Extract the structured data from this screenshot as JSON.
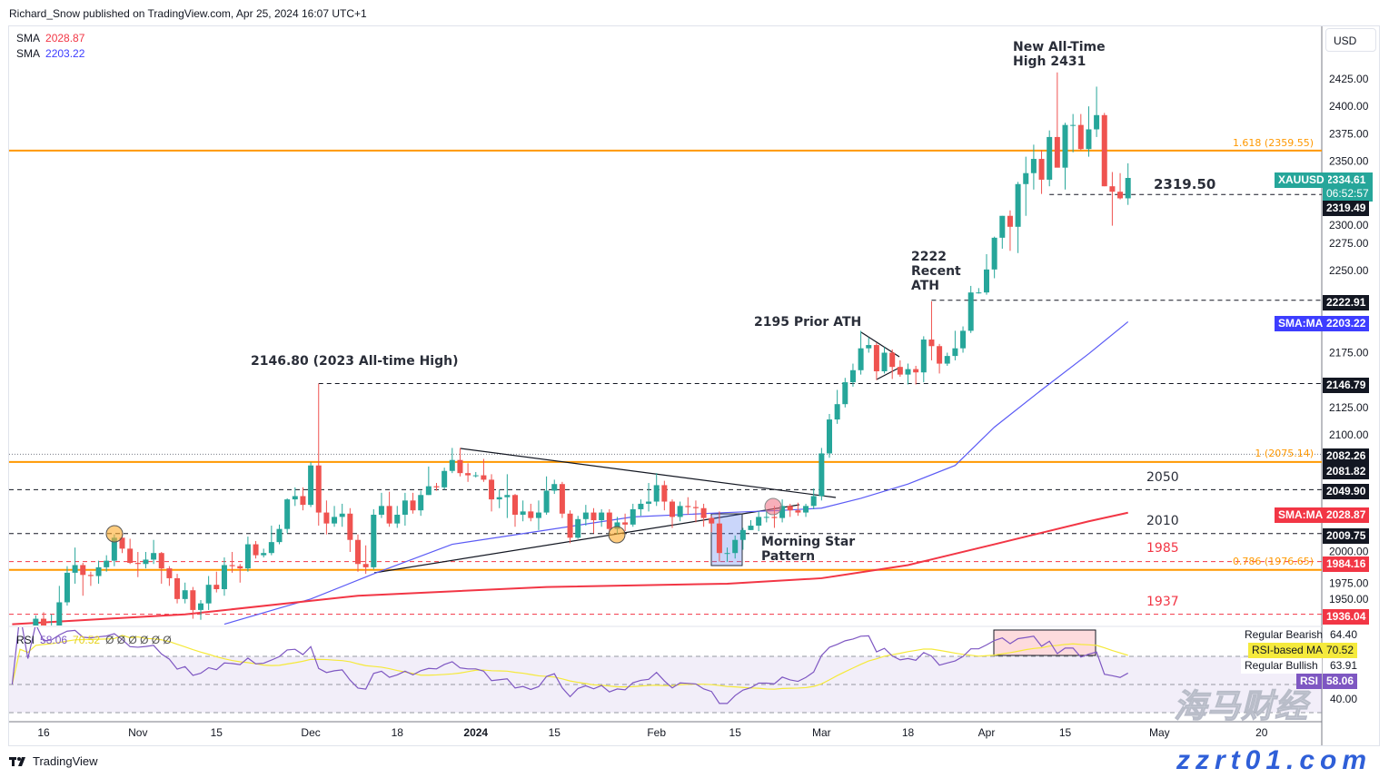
{
  "header": {
    "publisher": "Richard_Snow published on TradingView.com, Apr 25, 2024 16:07 UTC+1"
  },
  "legend": {
    "sma1_label": "SMA",
    "sma1_value": "2028.87",
    "sma2_label": "SMA",
    "sma2_value": "2203.22"
  },
  "rsi_legend": {
    "label": "RSI",
    "value": "58.06",
    "ma_value": "70.52",
    "extras": "Ø Ø Ø Ø Ø Ø"
  },
  "currency": "USD",
  "colors": {
    "up": "#26a69a",
    "down": "#ef5350",
    "sma50": "#5b5bf5",
    "sma200": "#f23645",
    "fib": "#ff9800",
    "rsi": "#7e57c2",
    "rsi_ma": "#f5e93a"
  },
  "watermark": {
    "cn": "海马财经",
    "url": "zzrt01.com"
  },
  "branding": "TradingView",
  "chart_data": {
    "type": "candlestick",
    "symbol": "XAUUSD",
    "ylim": [
      1925,
      2445
    ],
    "y_ticks": [
      "2425.00",
      "2400.00",
      "2375.00",
      "2350.00",
      "2300.00",
      "2275.00",
      "2250.00",
      "2175.00",
      "2125.00",
      "2100.00",
      "2000.00",
      "1975.00",
      "1950.00"
    ],
    "x_ticks": [
      [
        "16",
        "Oct 16"
      ],
      [
        "Nov",
        "Nov 1"
      ],
      [
        "15",
        "Nov 15"
      ],
      [
        "Dec",
        "Dec 1"
      ],
      [
        "18",
        "Dec 18"
      ],
      [
        "2024",
        "Jan 1"
      ],
      [
        "15",
        "Jan 15"
      ],
      [
        "Feb",
        "Feb 1"
      ],
      [
        "15",
        "Feb 15"
      ],
      [
        "Mar",
        "Mar 1"
      ],
      [
        "18",
        "Mar 18"
      ],
      [
        "Apr",
        "Apr 1"
      ],
      [
        "15",
        "Apr 15"
      ],
      [
        "May",
        "May 1"
      ],
      [
        "20",
        "May 20"
      ]
    ],
    "bars": [
      [
        "Oct 10",
        1857,
        1866,
        1855,
        1861
      ],
      [
        "Oct 11",
        1861,
        1876,
        1859,
        1874
      ],
      [
        "Oct 12",
        1874,
        1885,
        1866,
        1868
      ],
      [
        "Oct 13",
        1868,
        1935,
        1867,
        1932
      ],
      [
        "Oct 16",
        1932,
        1938,
        1909,
        1920
      ],
      [
        "Oct 17",
        1920,
        1936,
        1915,
        1923
      ],
      [
        "Oct 18",
        1923,
        1962,
        1920,
        1947
      ],
      [
        "Oct 19",
        1947,
        1980,
        1944,
        1974
      ],
      [
        "Oct 20",
        1974,
        1997,
        1964,
        1981
      ],
      [
        "Oct 23",
        1981,
        1983,
        1953,
        1972
      ],
      [
        "Oct 24",
        1972,
        1975,
        1962,
        1971
      ],
      [
        "Oct 25",
        1971,
        1985,
        1964,
        1979
      ],
      [
        "Oct 26",
        1979,
        1990,
        1975,
        1985
      ],
      [
        "Oct 27",
        1985,
        2009,
        1980,
        2006
      ],
      [
        "Oct 30",
        2006,
        2010,
        1992,
        1996
      ],
      [
        "Oct 31",
        1996,
        2005,
        1982,
        1983
      ],
      [
        "Nov 1",
        1983,
        1993,
        1970,
        1982
      ],
      [
        "Nov 2",
        1982,
        1993,
        1978,
        1986
      ],
      [
        "Nov 3",
        1986,
        2004,
        1982,
        1992
      ],
      [
        "Nov 6",
        1992,
        1993,
        1964,
        1978
      ],
      [
        "Nov 7",
        1978,
        1980,
        1962,
        1969
      ],
      [
        "Nov 8",
        1969,
        1973,
        1946,
        1950
      ],
      [
        "Nov 9",
        1950,
        1965,
        1946,
        1958
      ],
      [
        "Nov 10",
        1958,
        1961,
        1932,
        1940
      ],
      [
        "Nov 13",
        1940,
        1949,
        1931,
        1946
      ],
      [
        "Nov 14",
        1946,
        1971,
        1940,
        1963
      ],
      [
        "Nov 15",
        1963,
        1975,
        1956,
        1959
      ],
      [
        "Nov 16",
        1959,
        1988,
        1953,
        1981
      ],
      [
        "Nov 17",
        1981,
        1993,
        1974,
        1980
      ],
      [
        "Nov 20",
        1980,
        1982,
        1965,
        1978
      ],
      [
        "Nov 21",
        1978,
        2007,
        1975,
        2000
      ],
      [
        "Nov 22",
        2000,
        2003,
        1987,
        1990
      ],
      [
        "Nov 23",
        1990,
        1996,
        1988,
        1992
      ],
      [
        "Nov 24",
        1992,
        2017,
        1990,
        2002
      ],
      [
        "Nov 27",
        2002,
        2018,
        2000,
        2014
      ],
      [
        "Nov 28",
        2014,
        2042,
        2010,
        2041
      ],
      [
        "Nov 29",
        2041,
        2052,
        2035,
        2044
      ],
      [
        "Nov 30",
        2044,
        2052,
        2031,
        2036
      ],
      [
        "Dec 1",
        2036,
        2075,
        2034,
        2072
      ],
      [
        "Dec 4",
        2072,
        2146.8,
        2017,
        2029
      ],
      [
        "Dec 5",
        2029,
        2040,
        2009,
        2019
      ],
      [
        "Dec 6",
        2019,
        2035,
        2016,
        2025
      ],
      [
        "Dec 7",
        2025,
        2037,
        2016,
        2028
      ],
      [
        "Dec 8",
        2028,
        2033,
        1993,
        2004
      ],
      [
        "Dec 11",
        2004,
        2009,
        1975,
        1982
      ],
      [
        "Dec 12",
        1982,
        1999,
        1973,
        1979
      ],
      [
        "Dec 13",
        1979,
        2032,
        1977,
        2027
      ],
      [
        "Dec 14",
        2027,
        2047,
        2024,
        2035
      ],
      [
        "Dec 15",
        2035,
        2048,
        2016,
        2019
      ],
      [
        "Dec 18",
        2019,
        2035,
        2015,
        2027
      ],
      [
        "Dec 19",
        2027,
        2047,
        2017,
        2040
      ],
      [
        "Dec 20",
        2040,
        2047,
        2028,
        2031
      ],
      [
        "Dec 21",
        2031,
        2049,
        2026,
        2045
      ],
      [
        "Dec 22",
        2045,
        2071,
        2045,
        2053
      ],
      [
        "Dec 25",
        2053,
        2056,
        2049,
        2052
      ],
      [
        "Dec 26",
        2052,
        2070,
        2050,
        2067
      ],
      [
        "Dec 27",
        2067,
        2088,
        2065,
        2077
      ],
      [
        "Dec 28",
        2077,
        2088,
        2062,
        2065
      ],
      [
        "Dec 29",
        2065,
        2074,
        2057,
        2063
      ],
      [
        "Jan 1",
        2063,
        2066,
        2061,
        2063
      ],
      [
        "Jan 2",
        2063,
        2078,
        2057,
        2059
      ],
      [
        "Jan 3",
        2059,
        2064,
        2030,
        2041
      ],
      [
        "Jan 4",
        2041,
        2050,
        2033,
        2043
      ],
      [
        "Jan 5",
        2043,
        2064,
        2024,
        2045
      ],
      [
        "Jan 8",
        2045,
        2046,
        2016,
        2027
      ],
      [
        "Jan 9",
        2027,
        2040,
        2021,
        2030
      ],
      [
        "Jan 10",
        2030,
        2037,
        2021,
        2024
      ],
      [
        "Jan 11",
        2024,
        2040,
        2013,
        2029
      ],
      [
        "Jan 12",
        2029,
        2062,
        2027,
        2049
      ],
      [
        "Jan 15",
        2049,
        2059,
        2046,
        2055
      ],
      [
        "Jan 16",
        2055,
        2057,
        2024,
        2028
      ],
      [
        "Jan 17",
        2028,
        2031,
        2001,
        2006
      ],
      [
        "Jan 18",
        2006,
        2026,
        2005,
        2023
      ],
      [
        "Jan 19",
        2023,
        2036,
        2017,
        2029
      ],
      [
        "Jan 22",
        2029,
        2033,
        2010,
        2022
      ],
      [
        "Jan 23",
        2022,
        2032,
        2016,
        2029
      ],
      [
        "Jan 24",
        2029,
        2032,
        2011,
        2014
      ],
      [
        "Jan 25",
        2014,
        2025,
        2009,
        2020
      ],
      [
        "Jan 26",
        2020,
        2028,
        2012,
        2018
      ],
      [
        "Jan 29",
        2018,
        2037,
        2016,
        2032
      ],
      [
        "Jan 30",
        2032,
        2041,
        2026,
        2037
      ],
      [
        "Jan 31",
        2037,
        2056,
        2030,
        2039
      ],
      [
        "Feb 1",
        2039,
        2065,
        2035,
        2054
      ],
      [
        "Feb 2",
        2054,
        2058,
        2031,
        2039
      ],
      [
        "Feb 5",
        2039,
        2041,
        2015,
        2025
      ],
      [
        "Feb 6",
        2025,
        2039,
        2021,
        2035
      ],
      [
        "Feb 7",
        2035,
        2043,
        2027,
        2034
      ],
      [
        "Feb 8",
        2034,
        2040,
        2020,
        2033
      ],
      [
        "Feb 9",
        2033,
        2037,
        2016,
        2024
      ],
      [
        "Feb 12",
        2024,
        2026,
        2011,
        2019
      ],
      [
        "Feb 13",
        2019,
        2030,
        1984,
        1992
      ],
      [
        "Feb 14",
        1992,
        1997,
        1984,
        1992
      ],
      [
        "Feb 15",
        1992,
        2008,
        1987,
        2004
      ],
      [
        "Feb 16",
        2004,
        2015,
        1995,
        2013
      ],
      [
        "Feb 19",
        2013,
        2022,
        2013,
        2017
      ],
      [
        "Feb 20",
        2017,
        2030,
        2012,
        2025
      ],
      [
        "Feb 21",
        2025,
        2032,
        2020,
        2025
      ],
      [
        "Feb 22",
        2025,
        2035,
        2015,
        2024
      ],
      [
        "Feb 23",
        2024,
        2041,
        2020,
        2035
      ],
      [
        "Feb 26",
        2035,
        2037,
        2025,
        2031
      ],
      [
        "Feb 27",
        2031,
        2038,
        2026,
        2029
      ],
      [
        "Feb 28",
        2029,
        2037,
        2025,
        2035
      ],
      [
        "Feb 29",
        2035,
        2051,
        2032,
        2044
      ],
      [
        "Mar 1",
        2044,
        2088,
        2040,
        2083
      ],
      [
        "Mar 4",
        2083,
        2119,
        2079,
        2114
      ],
      [
        "Mar 5",
        2114,
        2141,
        2110,
        2128
      ],
      [
        "Mar 6",
        2128,
        2152,
        2125,
        2148
      ],
      [
        "Mar 7",
        2148,
        2165,
        2144,
        2159
      ],
      [
        "Mar 8",
        2159,
        2195,
        2155,
        2179
      ],
      [
        "Mar 11",
        2179,
        2189,
        2175,
        2182
      ],
      [
        "Mar 12",
        2182,
        2184,
        2150,
        2158
      ],
      [
        "Mar 13",
        2158,
        2180,
        2156,
        2175
      ],
      [
        "Mar 14",
        2175,
        2178,
        2151,
        2162
      ],
      [
        "Mar 15",
        2162,
        2168,
        2153,
        2155
      ],
      [
        "Mar 18",
        2155,
        2165,
        2146,
        2160
      ],
      [
        "Mar 19",
        2160,
        2163,
        2146,
        2157
      ],
      [
        "Mar 20",
        2157,
        2190,
        2148,
        2187
      ],
      [
        "Mar 21",
        2187,
        2222,
        2168,
        2181
      ],
      [
        "Mar 22",
        2181,
        2183,
        2156,
        2165
      ],
      [
        "Mar 25",
        2165,
        2175,
        2163,
        2172
      ],
      [
        "Mar 26",
        2172,
        2195,
        2168,
        2179
      ],
      [
        "Mar 27",
        2179,
        2199,
        2175,
        2195
      ],
      [
        "Mar 28",
        2195,
        2236,
        2193,
        2230
      ],
      [
        "Mar 29",
        2230,
        2234,
        2229,
        2230
      ],
      [
        "Apr 1",
        2230,
        2265,
        2228,
        2251
      ],
      [
        "Apr 2",
        2251,
        2281,
        2243,
        2280
      ],
      [
        "Apr 3",
        2280,
        2300,
        2270,
        2300
      ],
      [
        "Apr 4",
        2300,
        2305,
        2268,
        2290
      ],
      [
        "Apr 5",
        2290,
        2331,
        2266,
        2329
      ],
      [
        "Apr 8",
        2329,
        2354,
        2300,
        2339
      ],
      [
        "Apr 9",
        2339,
        2365,
        2324,
        2352
      ],
      [
        "Apr 10",
        2352,
        2360,
        2320,
        2333
      ],
      [
        "Apr 11",
        2333,
        2378,
        2327,
        2372
      ],
      [
        "Apr 12",
        2372,
        2431,
        2345,
        2344
      ],
      [
        "Apr 15",
        2344,
        2385,
        2324,
        2383
      ],
      [
        "Apr 16",
        2383,
        2393,
        2358,
        2383
      ],
      [
        "Apr 17",
        2383,
        2393,
        2360,
        2361
      ],
      [
        "Apr 18",
        2361,
        2400,
        2354,
        2379
      ],
      [
        "Apr 19",
        2379,
        2418,
        2372,
        2392
      ],
      [
        "Apr 22",
        2392,
        2394,
        2327,
        2327
      ],
      [
        "Apr 23",
        2327,
        2340,
        2291,
        2322
      ],
      [
        "Apr 24",
        2322,
        2339,
        2315,
        2316
      ],
      [
        "Apr 25",
        2316,
        2348,
        2310,
        2334.61
      ]
    ],
    "sma50": [
      [
        "Nov 16",
        1927
      ],
      [
        "Dec 1",
        1950
      ],
      [
        "Dec 13",
        1973
      ],
      [
        "Dec 27",
        2000
      ],
      [
        "Jan 12",
        2013
      ],
      [
        "Jan 29",
        2025
      ],
      [
        "Feb 14",
        2029
      ],
      [
        "Feb 23",
        2031
      ],
      [
        "Mar 1",
        2033
      ],
      [
        "Mar 8",
        2042
      ],
      [
        "Mar 18",
        2055
      ],
      [
        "Mar 26",
        2072
      ],
      [
        "Apr 2",
        2107
      ],
      [
        "Apr 10",
        2141
      ],
      [
        "Apr 18",
        2174
      ],
      [
        "Apr 25",
        2203.22
      ]
    ],
    "sma200": [
      [
        "Oct 10",
        1927
      ],
      [
        "Nov 9",
        1936
      ],
      [
        "Dec 11",
        1953
      ],
      [
        "Jan 12",
        1961
      ],
      [
        "Feb 14",
        1964
      ],
      [
        "Mar 1",
        1969
      ],
      [
        "Mar 18",
        1981
      ],
      [
        "Apr 2",
        2000
      ],
      [
        "Apr 18",
        2021
      ],
      [
        "Apr 25",
        2028.87
      ]
    ],
    "levels": [
      {
        "price": 2359.55,
        "style": "fib",
        "label": "1.618 (2359.55)",
        "from": "Oct 10"
      },
      {
        "price": 2319.5,
        "style": "dashed",
        "label": "2319.50",
        "from": "Apr 11"
      },
      {
        "price": 2222.91,
        "style": "dashed",
        "label": "",
        "from": "Mar 21"
      },
      {
        "price": 2146.79,
        "style": "dashed",
        "label": "",
        "from": "Dec 4"
      },
      {
        "price": 2082.26,
        "style": "dotted",
        "label": "",
        "from": "Oct 10"
      },
      {
        "price": 2075.14,
        "style": "fib",
        "label": "1 (2075.14)",
        "from": "Oct 10"
      },
      {
        "price": 2049.9,
        "style": "dashed",
        "label": "2050",
        "from": "Oct 10"
      },
      {
        "price": 2009.75,
        "style": "dashed",
        "label": "2010",
        "from": "Oct 10"
      },
      {
        "price": 1984.16,
        "style": "reddash",
        "label": "1985",
        "from": "Oct 10"
      },
      {
        "price": 1976.65,
        "style": "fib",
        "label": "0.786 (1976.65)",
        "from": "Oct 10"
      },
      {
        "price": 1936.04,
        "style": "reddash",
        "label": "1937",
        "from": "Oct 10"
      }
    ],
    "annotations": {
      "ath2023": "2146.80 (2023 All-time High)",
      "prior_ath": "2195 Prior ATH",
      "recent_ath": [
        "2222",
        "Recent",
        "ATH"
      ],
      "new_ath": [
        "New All-Time",
        "High 2431"
      ],
      "morning_star": [
        "Morning Star",
        "Pattern"
      ]
    },
    "axis_tags": [
      {
        "text": "2334.61",
        "sub": "06:52:57",
        "name": "XAUUSD",
        "bg": "#26a69a"
      },
      {
        "text": "2319.49",
        "bg": "#131722"
      },
      {
        "text": "2222.91",
        "bg": "#131722"
      },
      {
        "text": "2203.22",
        "name": "SMA:MA",
        "bg": "#3d3dff"
      },
      {
        "text": "2146.79",
        "bg": "#131722"
      },
      {
        "text": "2082.26",
        "bg": "#131722"
      },
      {
        "text": "2081.82",
        "bg": "#131722"
      },
      {
        "text": "2049.90",
        "bg": "#131722"
      },
      {
        "text": "2028.87",
        "name": "SMA:MA",
        "bg": "#f23645"
      },
      {
        "text": "2009.75",
        "bg": "#131722"
      },
      {
        "text": "1984.16",
        "bg": "#f23645"
      },
      {
        "text": "1936.04",
        "bg": "#f23645"
      }
    ],
    "rsi_axis": {
      "bearish_label": "Regular Bearish",
      "bearish_value": "64.40",
      "ma_label": "RSI-based MA",
      "ma_value": "70.52",
      "bullish_label": "Regular Bullish",
      "bullish_value": "63.91",
      "rsi_label": "RSI",
      "rsi_value": "58.06",
      "tick40": "40.00"
    }
  }
}
